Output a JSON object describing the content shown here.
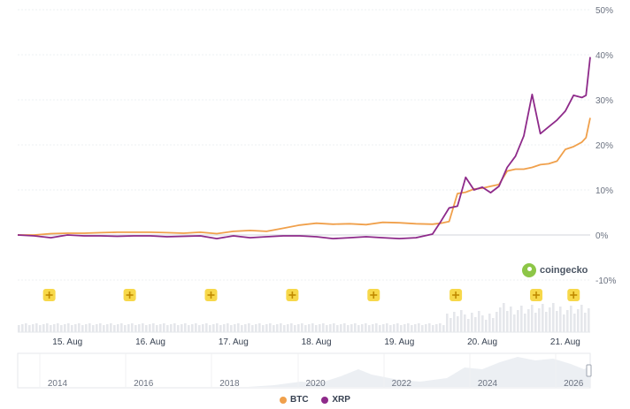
{
  "chart_data": {
    "type": "line",
    "y_unit": "%",
    "ylim": [
      -10,
      50
    ],
    "y_ticks": [
      "50%",
      "40%",
      "30%",
      "20%",
      "10%",
      "0%",
      "-10%"
    ],
    "y_tick_values": [
      50,
      40,
      30,
      20,
      10,
      0,
      -10
    ],
    "x_ticks": [
      "15. Aug",
      "16. Aug",
      "17. Aug",
      "18. Aug",
      "19. Aug",
      "20. Aug",
      "21. Aug"
    ],
    "x_tick_values": [
      15,
      16,
      17,
      18,
      19,
      20,
      21
    ],
    "xlim": [
      14.4,
      21.3
    ],
    "grid": true,
    "legend_position": "bottom",
    "series": [
      {
        "name": "BTC",
        "color": "#f0a04b",
        "x": [
          14.4,
          14.6,
          14.8,
          15.0,
          15.2,
          15.4,
          15.6,
          15.8,
          16.0,
          16.2,
          16.4,
          16.6,
          16.8,
          17.0,
          17.2,
          17.4,
          17.6,
          17.8,
          18.0,
          18.2,
          18.4,
          18.6,
          18.8,
          19.0,
          19.2,
          19.4,
          19.5,
          19.6,
          19.7,
          19.8,
          19.9,
          20.0,
          20.1,
          20.2,
          20.3,
          20.4,
          20.5,
          20.6,
          20.7,
          20.8,
          20.9,
          21.0,
          21.1,
          21.2,
          21.25,
          21.3
        ],
        "values": [
          0,
          0,
          0.3,
          0.4,
          0.4,
          0.5,
          0.6,
          0.6,
          0.6,
          0.5,
          0.4,
          0.6,
          0.3,
          0.8,
          1.0,
          0.8,
          1.5,
          2.2,
          2.6,
          2.4,
          2.5,
          2.3,
          2.8,
          2.7,
          2.5,
          2.4,
          2.6,
          3.0,
          9.2,
          9.5,
          10.2,
          10.4,
          10.8,
          11.2,
          14.2,
          14.6,
          14.6,
          15.0,
          15.6,
          15.8,
          16.4,
          19.0,
          19.6,
          20.6,
          21.6,
          26.0
        ]
      },
      {
        "name": "XRP",
        "color": "#8e2a8a",
        "x": [
          14.4,
          14.6,
          14.8,
          15.0,
          15.2,
          15.4,
          15.6,
          15.8,
          16.0,
          16.2,
          16.4,
          16.6,
          16.8,
          17.0,
          17.2,
          17.4,
          17.6,
          17.8,
          18.0,
          18.2,
          18.4,
          18.6,
          18.8,
          19.0,
          19.2,
          19.4,
          19.5,
          19.6,
          19.7,
          19.8,
          19.9,
          20.0,
          20.1,
          20.2,
          20.3,
          20.4,
          20.5,
          20.6,
          20.7,
          20.8,
          20.9,
          21.0,
          21.1,
          21.2,
          21.25,
          21.3
        ],
        "values": [
          0,
          -0.2,
          -0.6,
          0,
          -0.2,
          -0.2,
          -0.3,
          -0.2,
          -0.2,
          -0.4,
          -0.3,
          -0.2,
          -0.8,
          -0.2,
          -0.6,
          -0.4,
          -0.2,
          -0.2,
          -0.4,
          -0.8,
          -0.6,
          -0.4,
          -0.6,
          -0.8,
          -0.6,
          0.2,
          3.0,
          6.0,
          6.4,
          12.8,
          10.0,
          10.6,
          9.4,
          10.8,
          15.0,
          17.5,
          22.0,
          31.2,
          22.5,
          24.0,
          25.5,
          27.5,
          31.0,
          30.5,
          31.0,
          39.5
        ]
      }
    ],
    "navigator_ticks": [
      "2014",
      "2016",
      "2018",
      "2020",
      "2022",
      "2024",
      "2026"
    ],
    "watermark": "coingecko"
  }
}
